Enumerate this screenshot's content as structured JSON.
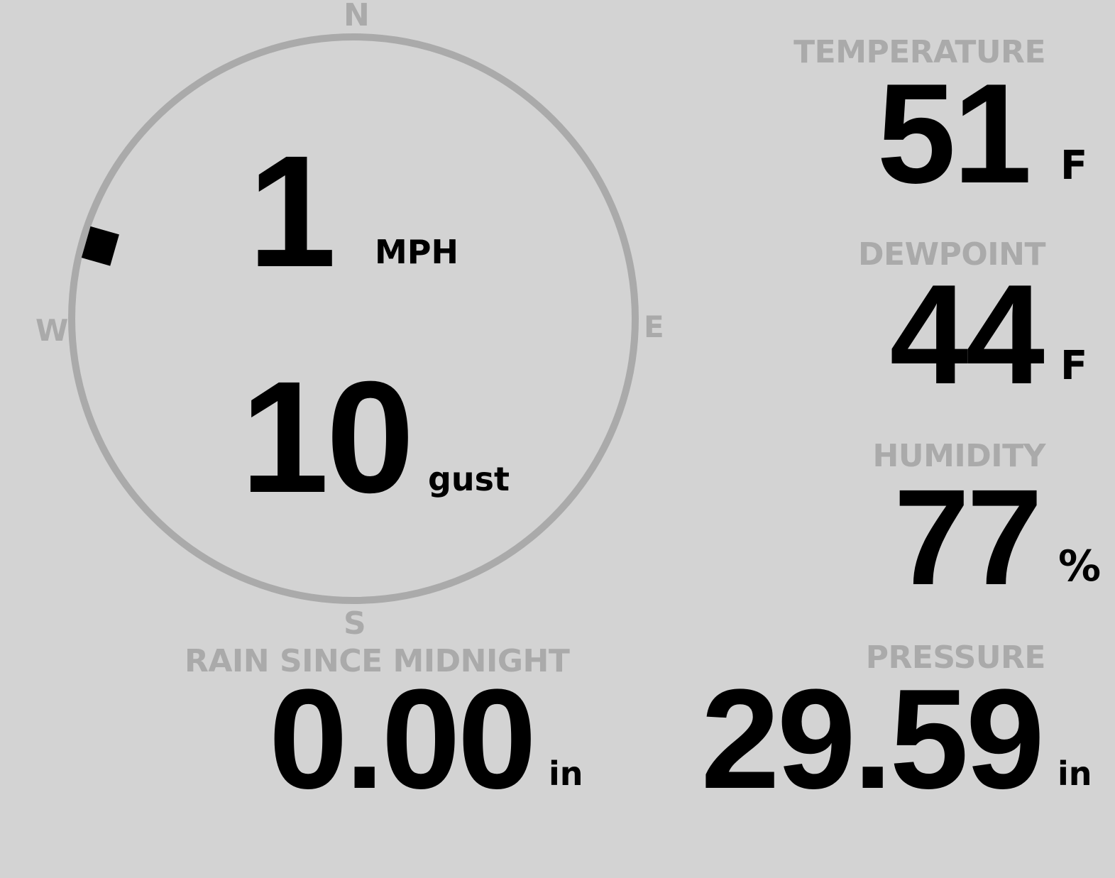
{
  "colors": {
    "background": "#d3d3d3",
    "label": "#aaaaaa",
    "value": "#000000",
    "compass_ring": "#aaaaaa",
    "wind_marker": "#000000"
  },
  "wind": {
    "compass": {
      "north": "N",
      "east": "E",
      "south": "S",
      "west": "W"
    },
    "direction_deg": 286,
    "speed": "1",
    "speed_unit": "MPH",
    "gust": "10",
    "gust_unit": "gust"
  },
  "temperature": {
    "label": "TEMPERATURE",
    "value": "51",
    "unit": "F"
  },
  "dewpoint": {
    "label": "DEWPOINT",
    "value": "44",
    "unit": "F"
  },
  "humidity": {
    "label": "HUMIDITY",
    "value": "77",
    "unit": "%"
  },
  "rain": {
    "label": "RAIN SINCE MIDNIGHT",
    "value": "0.00",
    "unit": "in"
  },
  "pressure": {
    "label": "PRESSURE",
    "value": "29.59",
    "unit": "in"
  }
}
